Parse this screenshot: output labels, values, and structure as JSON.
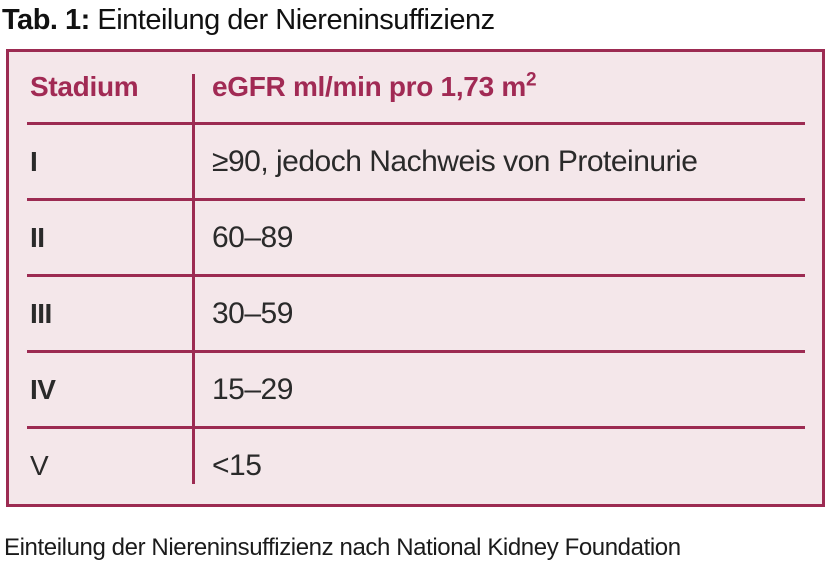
{
  "title": {
    "prefix": "Tab. 1:",
    "text": " Einteilung der Niereninsuffizienz"
  },
  "table": {
    "headers": {
      "stadium": "Stadium",
      "egfr_main": "eGFR ml/min pro 1,73 m",
      "egfr_sup": "2"
    },
    "rows": [
      {
        "stadium": "I",
        "egfr": "≥90, jedoch Nachweis von Proteinurie"
      },
      {
        "stadium": "II",
        "egfr": "60–89"
      },
      {
        "stadium": "III",
        "egfr": "30–59"
      },
      {
        "stadium": "IV",
        "egfr": "15–29"
      },
      {
        "stadium": "V",
        "egfr": "<15"
      }
    ]
  },
  "caption": "Einteilung der Niereninsuffizienz nach National Kidney Foundation",
  "colors": {
    "accent_line": "#9c2b52",
    "accent_text": "#a12a54",
    "table_background": "#f4e7ea",
    "page_background": "#ffffff",
    "body_text": "#2a2a2a",
    "title_text": "#111111"
  }
}
